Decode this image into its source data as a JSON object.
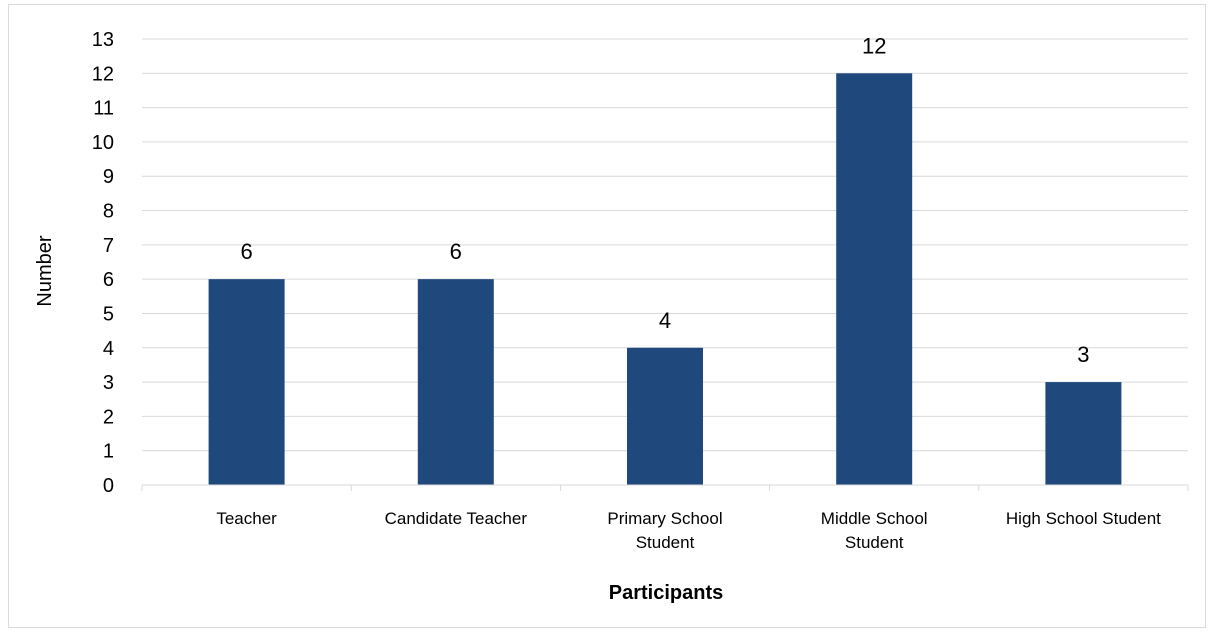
{
  "chart_data": {
    "type": "bar",
    "title": "",
    "xlabel": "Participants",
    "ylabel": "Number",
    "ylim": [
      0,
      13
    ],
    "ytick_step": 1,
    "grid": true,
    "legend": "none",
    "bar_color": "#1f497d",
    "gridline_color": "#d9d9d9",
    "categories": [
      [
        "Teacher"
      ],
      [
        "Candidate Teacher"
      ],
      [
        "Primary School",
        "Student"
      ],
      [
        "Middle School",
        "Student"
      ],
      [
        "High School Student"
      ]
    ],
    "values": [
      6,
      6,
      4,
      12,
      3
    ]
  }
}
